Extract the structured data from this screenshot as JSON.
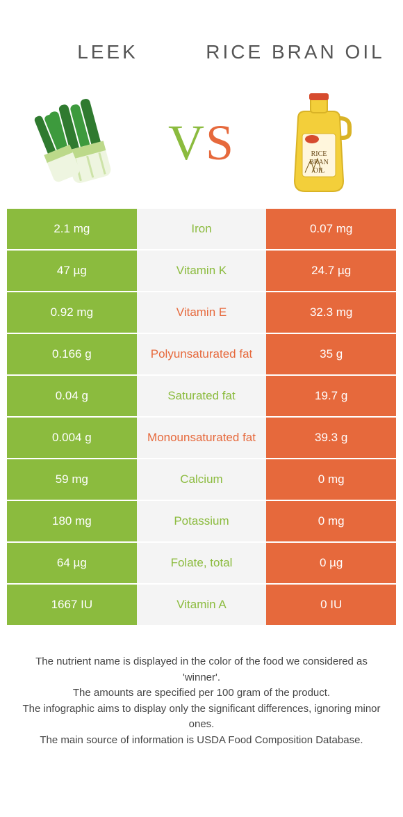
{
  "colors": {
    "left": "#8bbb3e",
    "right": "#e6693c",
    "mid_bg": "#f4f4f4",
    "title_text": "#555555",
    "footer_text": "#444444"
  },
  "left_food": {
    "title": "LEEK"
  },
  "right_food": {
    "title": "RICE BRAN OIL"
  },
  "vs_label": "VS",
  "rows": [
    {
      "left": "2.1 mg",
      "label": "Iron",
      "right": "0.07 mg",
      "winner": "left"
    },
    {
      "left": "47 µg",
      "label": "Vitamin K",
      "right": "24.7 µg",
      "winner": "left"
    },
    {
      "left": "0.92 mg",
      "label": "Vitamin E",
      "right": "32.3 mg",
      "winner": "right"
    },
    {
      "left": "0.166 g",
      "label": "Polyunsaturated fat",
      "right": "35 g",
      "winner": "right"
    },
    {
      "left": "0.04 g",
      "label": "Saturated fat",
      "right": "19.7 g",
      "winner": "left"
    },
    {
      "left": "0.004 g",
      "label": "Monounsaturated fat",
      "right": "39.3 g",
      "winner": "right"
    },
    {
      "left": "59 mg",
      "label": "Calcium",
      "right": "0 mg",
      "winner": "left"
    },
    {
      "left": "180 mg",
      "label": "Potassium",
      "right": "0 mg",
      "winner": "left"
    },
    {
      "left": "64 µg",
      "label": "Folate, total",
      "right": "0 µg",
      "winner": "left"
    },
    {
      "left": "1667 IU",
      "label": "Vitamin A",
      "right": "0 IU",
      "winner": "left"
    }
  ],
  "footer_lines": [
    "The nutrient name is displayed in the color of the food we considered as 'winner'.",
    "The amounts are specified per 100 gram of the product.",
    "The infographic aims to display only the significant differences, ignoring minor ones.",
    "The main source of information is USDA Food Composition Database."
  ]
}
